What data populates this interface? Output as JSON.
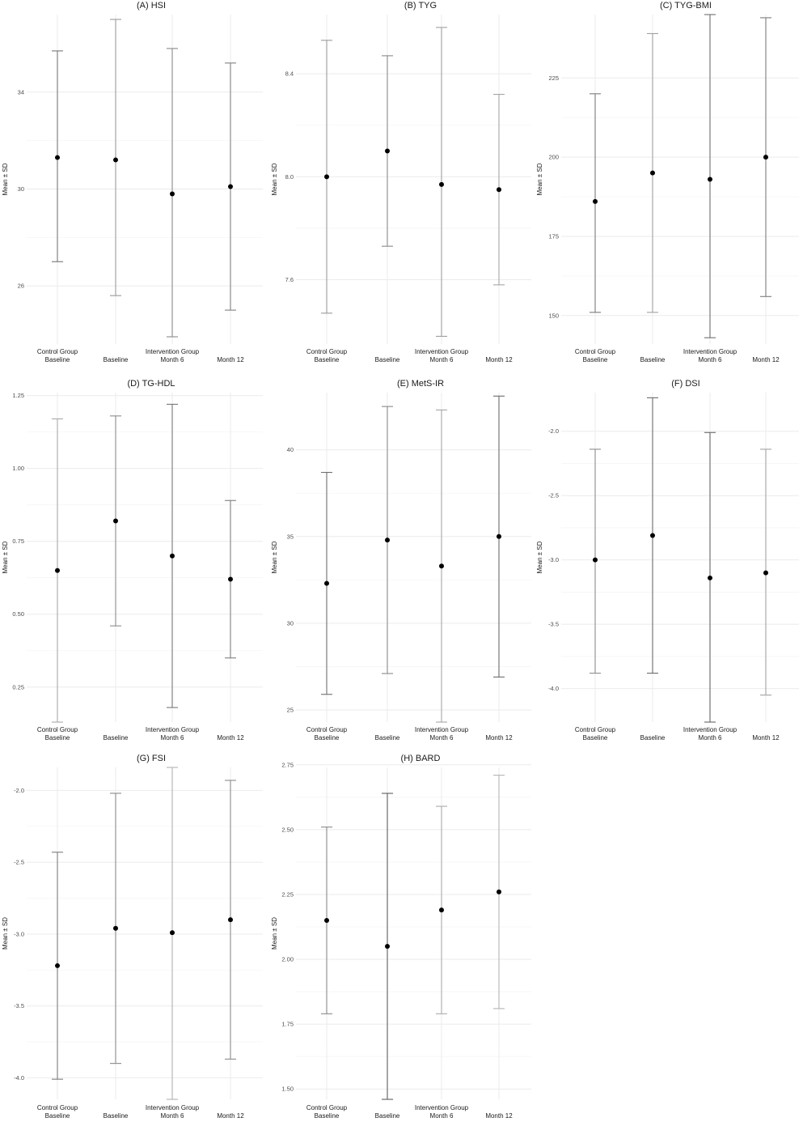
{
  "chart_data": [
    {
      "type": "scatter",
      "title": "(A) HSI",
      "ylabel": "Mean ± SD",
      "categories": [
        [
          "Control Group",
          "Baseline"
        ],
        [
          "Baseline"
        ],
        [
          "Intervention Group",
          "Month 6"
        ],
        [
          "Month 12"
        ]
      ],
      "means": [
        31.3,
        31.2,
        29.8,
        30.1
      ],
      "lower": [
        27.0,
        25.6,
        23.9,
        25.0
      ],
      "upper": [
        35.7,
        37.0,
        35.8,
        35.2
      ],
      "yticks": [
        26,
        30,
        34
      ],
      "ylim": [
        23.6,
        37.2
      ],
      "bar_colors": [
        "#777777",
        "#9a9a9a",
        "#8a8a8a",
        "#808080"
      ]
    },
    {
      "type": "scatter",
      "title": "(B) TYG",
      "ylabel": "Mean ± SD",
      "categories": [
        [
          "Control Group",
          "Baseline"
        ],
        [
          "Baseline"
        ],
        [
          "Intervention Group",
          "Month 6"
        ],
        [
          "Month 12"
        ]
      ],
      "means": [
        8.0,
        8.1,
        7.97,
        7.95
      ],
      "lower": [
        7.47,
        7.73,
        7.38,
        7.58
      ],
      "upper": [
        8.53,
        8.47,
        8.58,
        8.32
      ],
      "yticks": [
        7.6,
        8.0,
        8.4
      ],
      "ylim": [
        7.35,
        8.63
      ],
      "bar_colors": [
        "#9a9a9a",
        "#8a8a8a",
        "#9f9f9f",
        "#a5a5a5"
      ]
    },
    {
      "type": "scatter",
      "title": "(C) TYG-BMI",
      "ylabel": "Mean ± SD",
      "categories": [
        [
          "Control Group",
          "Baseline"
        ],
        [
          "Baseline"
        ],
        [
          "Intervention Group",
          "Month 6"
        ],
        [
          "Month 12"
        ]
      ],
      "means": [
        186,
        195,
        193,
        200
      ],
      "lower": [
        151,
        151,
        143,
        156
      ],
      "upper": [
        220,
        239,
        245,
        244
      ],
      "yticks": [
        150,
        175,
        200,
        225
      ],
      "ylim": [
        141,
        245
      ],
      "bar_colors": [
        "#7a7a7a",
        "#a0a0a0",
        "#6e6e6e",
        "#7c7c7c"
      ]
    },
    {
      "type": "scatter",
      "title": "(D) TG-HDL",
      "ylabel": "Mean ± SD",
      "categories": [
        [
          "Control Group",
          "Baseline"
        ],
        [
          "Baseline"
        ],
        [
          "Intervention Group",
          "Month 6"
        ],
        [
          "Month 12"
        ]
      ],
      "means": [
        0.65,
        0.82,
        0.7,
        0.62
      ],
      "lower": [
        0.13,
        0.46,
        0.18,
        0.35
      ],
      "upper": [
        1.17,
        1.18,
        1.22,
        0.89
      ],
      "yticks": [
        0.25,
        0.5,
        0.75,
        1.0,
        1.25
      ],
      "ylim": [
        0.13,
        1.26
      ],
      "bar_colors": [
        "#a8a8a8",
        "#8c8c8c",
        "#777777",
        "#7f7f7f"
      ]
    },
    {
      "type": "scatter",
      "title": "(E) MetS-IR",
      "ylabel": "Mean ± SD",
      "categories": [
        [
          "Control Group",
          "Baseline"
        ],
        [
          "Baseline"
        ],
        [
          "Intervention Group",
          "Month 6"
        ],
        [
          "Month 12"
        ]
      ],
      "means": [
        32.3,
        34.8,
        33.3,
        35.0
      ],
      "lower": [
        25.9,
        27.1,
        24.3,
        26.9
      ],
      "upper": [
        38.7,
        42.5,
        42.3,
        43.1
      ],
      "yticks": [
        25,
        30,
        35,
        40
      ],
      "ylim": [
        24.3,
        43.3
      ],
      "bar_colors": [
        "#6f6f6f",
        "#8a8a8a",
        "#a5a5a5",
        "#6c6c6c"
      ]
    },
    {
      "type": "scatter",
      "title": "(F) DSI",
      "ylabel": "Mean ± SD",
      "categories": [
        [
          "Control Group",
          "Baseline"
        ],
        [
          "Baseline"
        ],
        [
          "Intervention Group",
          "Month 6"
        ],
        [
          "Month 12"
        ]
      ],
      "means": [
        -3.0,
        -2.81,
        -3.14,
        -3.1
      ],
      "lower": [
        -3.88,
        -3.88,
        -4.26,
        -4.05
      ],
      "upper": [
        -2.14,
        -1.74,
        -2.01,
        -2.14
      ],
      "yticks": [
        -4.0,
        -3.5,
        -3.0,
        -2.5,
        -2.0
      ],
      "ylim": [
        -4.26,
        -1.7
      ],
      "bar_colors": [
        "#8c8c8c",
        "#6a6a6a",
        "#666666",
        "#a2a2a2"
      ]
    },
    {
      "type": "scatter",
      "title": "(G) FSI",
      "ylabel": "Mean ± SD",
      "categories": [
        [
          "Control Group",
          "Baseline"
        ],
        [
          "Baseline"
        ],
        [
          "Intervention Group",
          "Month 6"
        ],
        [
          "Month 12"
        ]
      ],
      "means": [
        -3.22,
        -2.96,
        -2.99,
        -2.9
      ],
      "lower": [
        -4.01,
        -3.9,
        -4.15,
        -3.87
      ],
      "upper": [
        -2.43,
        -2.02,
        -1.84,
        -1.93
      ],
      "yticks": [
        -4.0,
        -3.5,
        -3.0,
        -2.5,
        -2.0
      ],
      "ylim": [
        -4.15,
        -1.84
      ],
      "bar_colors": [
        "#7c7c7c",
        "#8a8a8a",
        "#b0b0b0",
        "#8a8a8a"
      ]
    },
    {
      "type": "scatter",
      "title": "(H) BARD",
      "ylabel": "Mean ± SD",
      "categories": [
        [
          "Control Group",
          "Baseline"
        ],
        [
          "Baseline"
        ],
        [
          "Intervention Group",
          "Month 6"
        ],
        [
          "Month 12"
        ]
      ],
      "means": [
        2.15,
        2.05,
        2.19,
        2.26
      ],
      "lower": [
        1.79,
        1.46,
        1.79,
        1.81
      ],
      "upper": [
        2.51,
        2.64,
        2.59,
        2.71
      ],
      "yticks": [
        1.5,
        1.75,
        2.0,
        2.25,
        2.5,
        2.75
      ],
      "ylim": [
        1.46,
        2.74
      ],
      "bar_colors": [
        "#8a8a8a",
        "#5e5e5e",
        "#aaaaaa",
        "#b4b4b4"
      ]
    }
  ]
}
